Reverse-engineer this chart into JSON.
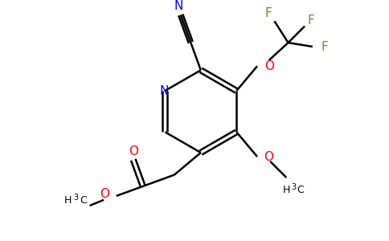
{
  "bg_color": "#ffffff",
  "black": "#000000",
  "blue": "#0000ff",
  "red": "#ff0000",
  "olive": "#6b8e23",
  "bond_lw": 1.8,
  "figsize": [
    4.84,
    3.0
  ],
  "dpi": 100,
  "xlim": [
    0,
    9.68
  ],
  "ylim": [
    0,
    6.0
  ]
}
